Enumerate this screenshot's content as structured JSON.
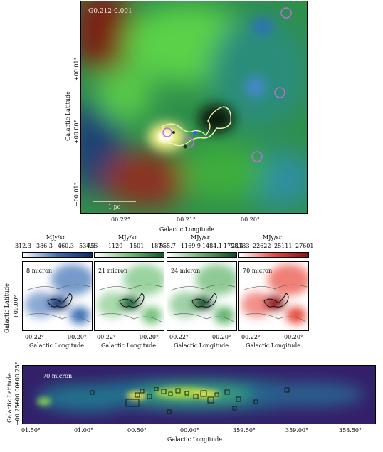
{
  "main_panel": {
    "field_label": "G0.212-0.001",
    "scalebar_label": "1 pc",
    "xlabel": "Galactic Longitude",
    "ylabel": "Galactic Latitude",
    "xticks": [
      "00.22°",
      "00.21°",
      "00.20°"
    ],
    "yticks": [
      "+00.01°",
      "+00.00°",
      "−00.01°"
    ],
    "colors": {
      "red": "#b3261e",
      "green": "#31c12f",
      "blue": "#4a8fd6"
    }
  },
  "small_panels": [
    {
      "label": "8 micron",
      "unit": "MJy/sr",
      "ticks": [
        "312.3",
        "386.3",
        "460.3",
        "534.3"
      ],
      "cmap": [
        "#ffffff",
        "#3a6fb5",
        "#0a2a6e"
      ]
    },
    {
      "label": "21 micron",
      "unit": "MJy/sr",
      "ticks": [
        "756",
        "1129",
        "1501",
        "1874"
      ],
      "cmap": [
        "#ffffff",
        "#6fc176",
        "#0b5a2a"
      ]
    },
    {
      "label": "24 micron",
      "unit": "MJy/sr",
      "ticks": [
        "855.7",
        "1169.9",
        "1484.1",
        "1798.4"
      ],
      "cmap": [
        "#ffffff",
        "#5fb36a",
        "#0a4a22"
      ]
    },
    {
      "label": "70 micron",
      "unit": "MJy/sr",
      "ticks": [
        "20133",
        "22622",
        "25111",
        "27601"
      ],
      "cmap": [
        "#ffffff",
        "#e94a3a",
        "#8a0f12"
      ]
    }
  ],
  "small_axes": {
    "xlabel": "Galactic Longitude",
    "ylabel": "Galactic Latitude",
    "xticks": [
      "00.22°",
      "00.20°"
    ],
    "ytick": "+00.00°"
  },
  "bottom_panel": {
    "label": "70 micron",
    "xlabel": "Galactic Longitude",
    "ylabel": "Galactic Latitude",
    "xticks": [
      "01.50°",
      "01.00°",
      "00.50°",
      "00.00°",
      "359.50°",
      "359.00°",
      "358.50°"
    ],
    "yticks": [
      "+00.25°",
      "+00.00°",
      "−00.25°"
    ]
  }
}
